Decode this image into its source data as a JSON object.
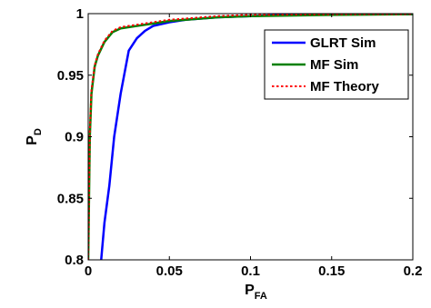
{
  "chart_data": {
    "type": "line",
    "xlabel": "P",
    "xlabel_sub": "FA",
    "ylabel": "P",
    "ylabel_sub": "D",
    "xlim": [
      0,
      0.2
    ],
    "ylim": [
      0.8,
      1.0
    ],
    "x_ticks": [
      0,
      0.05,
      0.1,
      0.15,
      0.2
    ],
    "x_tick_labels": [
      "0",
      "0.05",
      "0.1",
      "0.15",
      "0.2"
    ],
    "y_ticks": [
      0.8,
      0.85,
      0.9,
      0.95,
      1.0
    ],
    "y_tick_labels": [
      "0.8",
      "0.85",
      "0.9",
      "0.95",
      "1"
    ],
    "grid": false,
    "legend_position": "top-right",
    "series": [
      {
        "name": "GLRT Sim",
        "color": "#0000ff",
        "dash": "solid",
        "x": [
          0.008,
          0.01,
          0.013,
          0.016,
          0.02,
          0.025,
          0.03,
          0.035,
          0.04,
          0.05,
          0.06,
          0.08,
          0.1,
          0.12,
          0.15,
          0.2
        ],
        "y": [
          0.8,
          0.83,
          0.86,
          0.9,
          0.935,
          0.97,
          0.98,
          0.986,
          0.99,
          0.993,
          0.995,
          0.997,
          0.998,
          0.999,
          0.9993,
          0.9995
        ]
      },
      {
        "name": "MF Sim",
        "color": "#008000",
        "dash": "solid",
        "x": [
          0.0,
          0.001,
          0.002,
          0.004,
          0.006,
          0.01,
          0.015,
          0.02,
          0.03,
          0.04,
          0.05,
          0.06,
          0.08,
          0.1,
          0.15,
          0.2
        ],
        "y": [
          0.8,
          0.9,
          0.935,
          0.957,
          0.966,
          0.977,
          0.985,
          0.988,
          0.99,
          0.992,
          0.994,
          0.995,
          0.997,
          0.998,
          0.999,
          0.9995
        ]
      },
      {
        "name": "MF Theory",
        "color": "#ff0000",
        "dash": "dotted",
        "x": [
          0.0,
          0.001,
          0.002,
          0.004,
          0.006,
          0.01,
          0.015,
          0.02,
          0.03,
          0.04,
          0.05,
          0.06,
          0.08,
          0.1,
          0.15,
          0.2
        ],
        "y": [
          0.8,
          0.905,
          0.938,
          0.958,
          0.967,
          0.978,
          0.986,
          0.989,
          0.991,
          0.993,
          0.995,
          0.996,
          0.998,
          0.999,
          0.9995,
          0.9997
        ]
      }
    ]
  }
}
